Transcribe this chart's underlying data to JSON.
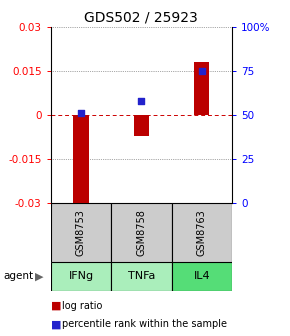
{
  "title": "GDS502 / 25923",
  "samples": [
    "GSM8753",
    "GSM8758",
    "GSM8763"
  ],
  "agents": [
    "IFNg",
    "TNFa",
    "IL4"
  ],
  "log_ratios": [
    -0.031,
    -0.007,
    0.018
  ],
  "percentile_ranks": [
    51,
    58,
    75
  ],
  "ylim_left": [
    -0.03,
    0.03
  ],
  "ylim_right": [
    0,
    100
  ],
  "yticks_left": [
    -0.03,
    -0.015,
    0,
    0.015,
    0.03
  ],
  "yticks_right": [
    0,
    25,
    50,
    75,
    100
  ],
  "ytick_labels_left": [
    "-0.03",
    "-0.015",
    "0",
    "0.015",
    "0.03"
  ],
  "ytick_labels_right": [
    "0",
    "25",
    "50",
    "75",
    "100%"
  ],
  "bar_color": "#bb0000",
  "square_color": "#2222cc",
  "dot_line_color": "#555555",
  "zero_line_color": "#cc0000",
  "sample_bg_color": "#cccccc",
  "agent_bg_color_light": "#aaeebb",
  "agent_bg_color_dark": "#55dd77",
  "legend_bar_label": "log ratio",
  "legend_sq_label": "percentile rank within the sample",
  "agent_label": "agent",
  "title_fontsize": 10,
  "tick_fontsize": 7.5,
  "cell_fontsize": 7,
  "agent_fontsize": 8,
  "legend_fontsize": 7
}
